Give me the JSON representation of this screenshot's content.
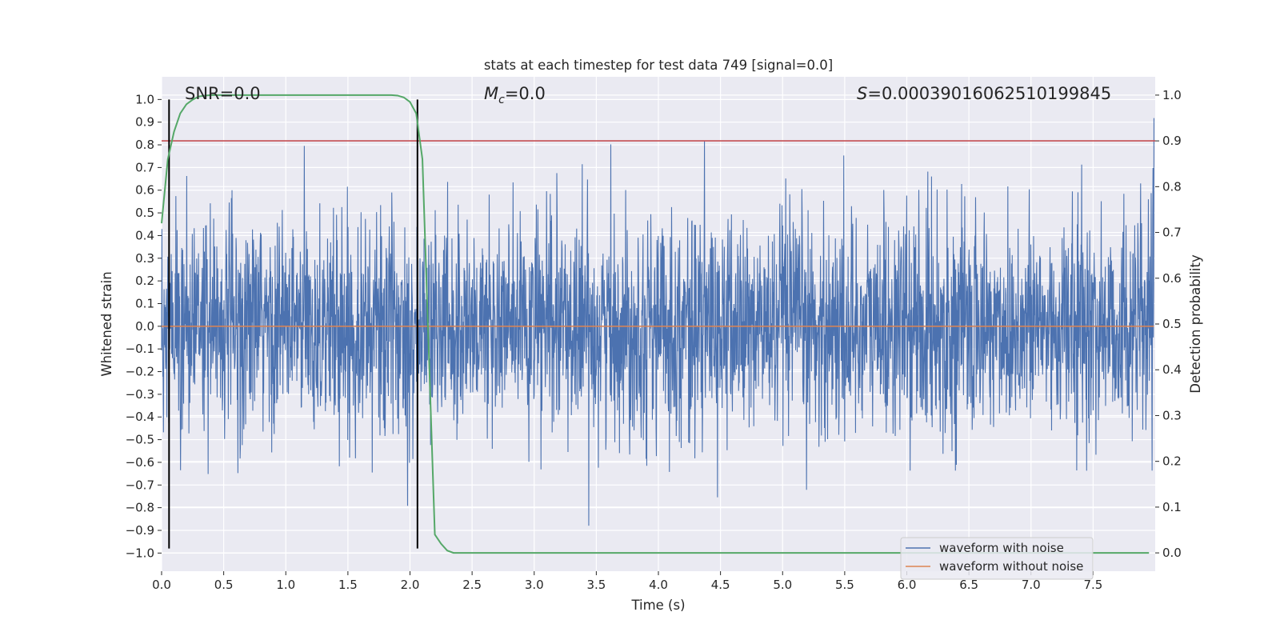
{
  "chart_data": {
    "type": "line",
    "title": "stats at each timestep for test data 749 [signal=0.0]",
    "xlabel": "Time (s)",
    "ylabel": "Whitened strain",
    "y2label": "Detection probability",
    "xlim": [
      0.0,
      8.0
    ],
    "ylim": [
      -1.08,
      1.1
    ],
    "y2lim": [
      -0.04,
      1.04
    ],
    "x_ticks": [
      0.0,
      0.5,
      1.0,
      1.5,
      2.0,
      2.5,
      3.0,
      3.5,
      4.0,
      4.5,
      5.0,
      5.5,
      6.0,
      6.5,
      7.0,
      7.5
    ],
    "x_tick_labels": [
      "0.0",
      "0.5",
      "1.0",
      "1.5",
      "2.0",
      "2.5",
      "3.0",
      "3.5",
      "4.0",
      "4.5",
      "5.0",
      "5.5",
      "6.0",
      "6.5",
      "7.0",
      "7.5"
    ],
    "y_ticks": [
      -1.0,
      -0.9,
      -0.8,
      -0.7,
      -0.6,
      -0.5,
      -0.4,
      -0.3,
      -0.2,
      -0.1,
      0.0,
      0.1,
      0.2,
      0.3,
      0.4,
      0.5,
      0.6,
      0.7,
      0.8,
      0.9,
      1.0
    ],
    "y_tick_labels": [
      "−1.0",
      "−0.9",
      "−0.8",
      "−0.7",
      "−0.6",
      "−0.5",
      "−0.4",
      "−0.3",
      "−0.2",
      "−0.1",
      "0.0",
      "0.1",
      "0.2",
      "0.3",
      "0.4",
      "0.5",
      "0.6",
      "0.7",
      "0.8",
      "0.9",
      "1.0"
    ],
    "y2_ticks": [
      0.0,
      0.1,
      0.2,
      0.3,
      0.4,
      0.5,
      0.6,
      0.7,
      0.8,
      0.9,
      1.0
    ],
    "y2_tick_labels": [
      "0.0",
      "0.1",
      "0.2",
      "0.3",
      "0.4",
      "0.5",
      "0.6",
      "0.7",
      "0.8",
      "0.9",
      "1.0"
    ],
    "grid": true,
    "legend_position": "bottom-right",
    "annotations": {
      "snr": "SNR=0.0",
      "mc_symbol": "M",
      "mc_sub": "c",
      "mc_value": "=0.0",
      "s_symbol": "S",
      "s_value": "=0.00039016062510199845"
    },
    "series": [
      {
        "name": "waveform with noise",
        "color": "#4c72b0",
        "description_samples": "dense noise, envelope roughly between -0.8 and 0.9 with peaks up to 1.0"
      },
      {
        "name": "waveform without noise",
        "color": "#dd8452",
        "values_constant": 0.0
      },
      {
        "name": "detection probability",
        "axis": "right",
        "color": "#55a868",
        "x": [
          0.0,
          0.05,
          0.1,
          0.15,
          0.2,
          0.25,
          0.3,
          0.35,
          0.4,
          0.5,
          1.0,
          1.5,
          1.85,
          1.9,
          1.95,
          2.0,
          2.05,
          2.1,
          2.15,
          2.2,
          2.25,
          2.3,
          2.35,
          2.4,
          2.5,
          7.95
        ],
        "values": [
          0.72,
          0.86,
          0.92,
          0.96,
          0.98,
          0.99,
          0.997,
          0.999,
          1.0,
          1.0,
          1.0,
          1.0,
          1.0,
          0.999,
          0.995,
          0.985,
          0.96,
          0.86,
          0.45,
          0.04,
          0.02,
          0.005,
          0.0,
          0.0,
          0.0,
          0.0
        ]
      }
    ],
    "vlines_time": [
      0.06,
      2.06
    ],
    "threshold_line": {
      "axis": "right",
      "value": 0.9,
      "color": "#c44e52"
    }
  }
}
